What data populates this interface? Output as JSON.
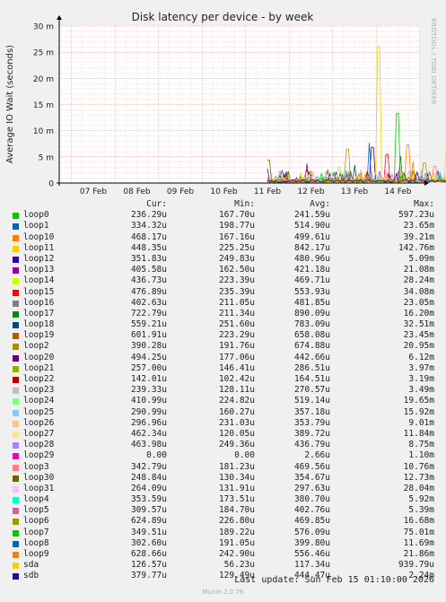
{
  "chart_data": {
    "type": "line",
    "title": "Disk latency per device - by week",
    "ylabel": "Average IO Wait (seconds)",
    "ylim": [
      0,
      30
    ],
    "y_ticks": [
      0,
      5,
      10,
      15,
      20,
      25,
      30
    ],
    "y_tick_labels": [
      "0",
      "5 m",
      "10 m",
      "15 m",
      "20 m",
      "25 m",
      "30 m"
    ],
    "y_unit": "ms",
    "x_tick_labels": [
      "07 Feb",
      "08 Feb",
      "09 Feb",
      "10 Feb",
      "11 Feb",
      "12 Feb",
      "13 Feb",
      "14 Feb"
    ],
    "data_start_day": 4.5,
    "x_range_days": [
      0,
      8.8
    ],
    "series": [
      {
        "name": "loop0",
        "color": "#00cc00",
        "cur": "236.29u",
        "min": "167.70u",
        "avg": "241.59u",
        "max": "597.23u"
      },
      {
        "name": "loop1",
        "color": "#0066b3",
        "cur": "334.32u",
        "min": "198.77u",
        "avg": "514.90u",
        "max": "23.65m"
      },
      {
        "name": "loop10",
        "color": "#ff8000",
        "cur": "468.17u",
        "min": "167.16u",
        "avg": "499.61u",
        "max": "39.21m"
      },
      {
        "name": "loop11",
        "color": "#ffcc00",
        "cur": "448.35u",
        "min": "225.25u",
        "avg": "842.17u",
        "max": "142.76m"
      },
      {
        "name": "loop12",
        "color": "#330099",
        "cur": "351.83u",
        "min": "249.83u",
        "avg": "480.96u",
        "max": "5.09m"
      },
      {
        "name": "loop13",
        "color": "#990099",
        "cur": "405.58u",
        "min": "162.50u",
        "avg": "421.18u",
        "max": "21.08m"
      },
      {
        "name": "loop14",
        "color": "#ccff00",
        "cur": "436.73u",
        "min": "223.39u",
        "avg": "469.71u",
        "max": "28.24m"
      },
      {
        "name": "loop15",
        "color": "#ff0000",
        "cur": "476.89u",
        "min": "235.39u",
        "avg": "553.93u",
        "max": "34.08m"
      },
      {
        "name": "loop16",
        "color": "#808080",
        "cur": "402.63u",
        "min": "211.05u",
        "avg": "481.85u",
        "max": "23.05m"
      },
      {
        "name": "loop17",
        "color": "#008f00",
        "cur": "722.79u",
        "min": "211.34u",
        "avg": "890.09u",
        "max": "16.20m"
      },
      {
        "name": "loop18",
        "color": "#00487d",
        "cur": "559.21u",
        "min": "251.60u",
        "avg": "783.09u",
        "max": "32.51m"
      },
      {
        "name": "loop19",
        "color": "#b35a00",
        "cur": "601.91u",
        "min": "223.29u",
        "avg": "658.08u",
        "max": "23.45m"
      },
      {
        "name": "loop2",
        "color": "#b38f00",
        "cur": "390.28u",
        "min": "191.76u",
        "avg": "674.88u",
        "max": "20.95m"
      },
      {
        "name": "loop20",
        "color": "#6b006b",
        "cur": "494.25u",
        "min": "177.06u",
        "avg": "442.66u",
        "max": "6.12m"
      },
      {
        "name": "loop21",
        "color": "#8fb300",
        "cur": "257.00u",
        "min": "146.41u",
        "avg": "286.51u",
        "max": "3.97m"
      },
      {
        "name": "loop22",
        "color": "#b30000",
        "cur": "142.01u",
        "min": "102.42u",
        "avg": "164.51u",
        "max": "3.19m"
      },
      {
        "name": "loop23",
        "color": "#bebebe",
        "cur": "239.33u",
        "min": "128.11u",
        "avg": "270.57u",
        "max": "3.49m"
      },
      {
        "name": "loop24",
        "color": "#80ff80",
        "cur": "410.99u",
        "min": "224.82u",
        "avg": "519.14u",
        "max": "19.65m"
      },
      {
        "name": "loop25",
        "color": "#80c9ff",
        "cur": "290.99u",
        "min": "160.27u",
        "avg": "357.18u",
        "max": "15.92m"
      },
      {
        "name": "loop26",
        "color": "#ffc080",
        "cur": "296.96u",
        "min": "231.03u",
        "avg": "353.79u",
        "max": "9.01m"
      },
      {
        "name": "loop27",
        "color": "#ffe680",
        "cur": "462.34u",
        "min": "120.05u",
        "avg": "389.72u",
        "max": "11.84m"
      },
      {
        "name": "loop28",
        "color": "#aa80ff",
        "cur": "463.98u",
        "min": "249.36u",
        "avg": "436.79u",
        "max": "8.75m"
      },
      {
        "name": "loop29",
        "color": "#ee00cc",
        "cur": "0.00",
        "min": "0.00",
        "avg": "2.66u",
        "max": "1.10m"
      },
      {
        "name": "loop3",
        "color": "#ff8080",
        "cur": "342.79u",
        "min": "181.23u",
        "avg": "469.56u",
        "max": "10.76m"
      },
      {
        "name": "loop30",
        "color": "#666600",
        "cur": "248.84u",
        "min": "130.34u",
        "avg": "354.67u",
        "max": "12.73m"
      },
      {
        "name": "loop31",
        "color": "#ffbfff",
        "cur": "264.09u",
        "min": "131.91u",
        "avg": "297.63u",
        "max": "28.04m"
      },
      {
        "name": "loop4",
        "color": "#00ffcc",
        "cur": "353.59u",
        "min": "173.51u",
        "avg": "380.70u",
        "max": "5.92m"
      },
      {
        "name": "loop5",
        "color": "#cc6699",
        "cur": "309.57u",
        "min": "184.70u",
        "avg": "402.76u",
        "max": "5.39m"
      },
      {
        "name": "loop6",
        "color": "#999900",
        "cur": "624.89u",
        "min": "226.80u",
        "avg": "469.85u",
        "max": "16.68m"
      },
      {
        "name": "loop7",
        "color": "#00cc00",
        "cur": "349.51u",
        "min": "189.22u",
        "avg": "576.09u",
        "max": "75.01m"
      },
      {
        "name": "loop8",
        "color": "#0066b3",
        "cur": "302.60u",
        "min": "191.05u",
        "avg": "399.80u",
        "max": "11.69m"
      },
      {
        "name": "loop9",
        "color": "#ff8000",
        "cur": "628.66u",
        "min": "242.90u",
        "avg": "556.46u",
        "max": "21.86m"
      },
      {
        "name": "sda",
        "color": "#ffcc00",
        "cur": "126.57u",
        "min": "56.23u",
        "avg": "117.34u",
        "max": "939.79u"
      },
      {
        "name": "sdb",
        "color": "#330099",
        "cur": "379.77u",
        "min": "129.49u",
        "avg": "444.47u",
        "max": "2.24m"
      }
    ],
    "peaks": [
      {
        "series": "loop11",
        "day": 7.06,
        "value": 26
      },
      {
        "series": "loop7",
        "day": 7.48,
        "value": 13.3
      },
      {
        "series": "loop1",
        "day": 6.85,
        "value": 7.7
      },
      {
        "series": "loop12",
        "day": 6.92,
        "value": 6.8
      },
      {
        "name_note": "",
        "series": "loop10",
        "day": 7.72,
        "value": 7.3
      },
      {
        "series": "loop14",
        "day": 8.6,
        "value": 7.0
      },
      {
        "series": "loop19",
        "day": 8.68,
        "value": 4.6
      },
      {
        "series": "loop2",
        "day": 6.34,
        "value": 6.5
      },
      {
        "series": "loop15",
        "day": 7.25,
        "value": 5.5
      },
      {
        "series": "loop17",
        "day": 7.55,
        "value": 5.2
      },
      {
        "series": "loop13",
        "day": 5.4,
        "value": 3.7
      },
      {
        "series": "loop30",
        "day": 4.52,
        "value": 4.4
      },
      {
        "series": "loop9",
        "day": 7.84,
        "value": 4.1
      },
      {
        "series": "loop6",
        "day": 8.1,
        "value": 3.8
      },
      {
        "series": "loop18",
        "day": 6.5,
        "value": 3.4
      },
      {
        "series": "loop24",
        "day": 6.15,
        "value": 3.0
      },
      {
        "series": "loop3",
        "day": 8.35,
        "value": 3.2
      },
      {
        "series": "loop0",
        "day": 5.9,
        "value": 2.6
      }
    ]
  },
  "side_label": "RRDTOOL / TOBI OETIKER",
  "legend_headers": {
    "cur": "Cur:",
    "min": "Min:",
    "avg": "Avg:",
    "max": "Max:"
  },
  "footer": {
    "last_update": "Last update: Sun Feb 15 01:10:00 2026"
  },
  "munin_version": "Munin 2.0.76"
}
